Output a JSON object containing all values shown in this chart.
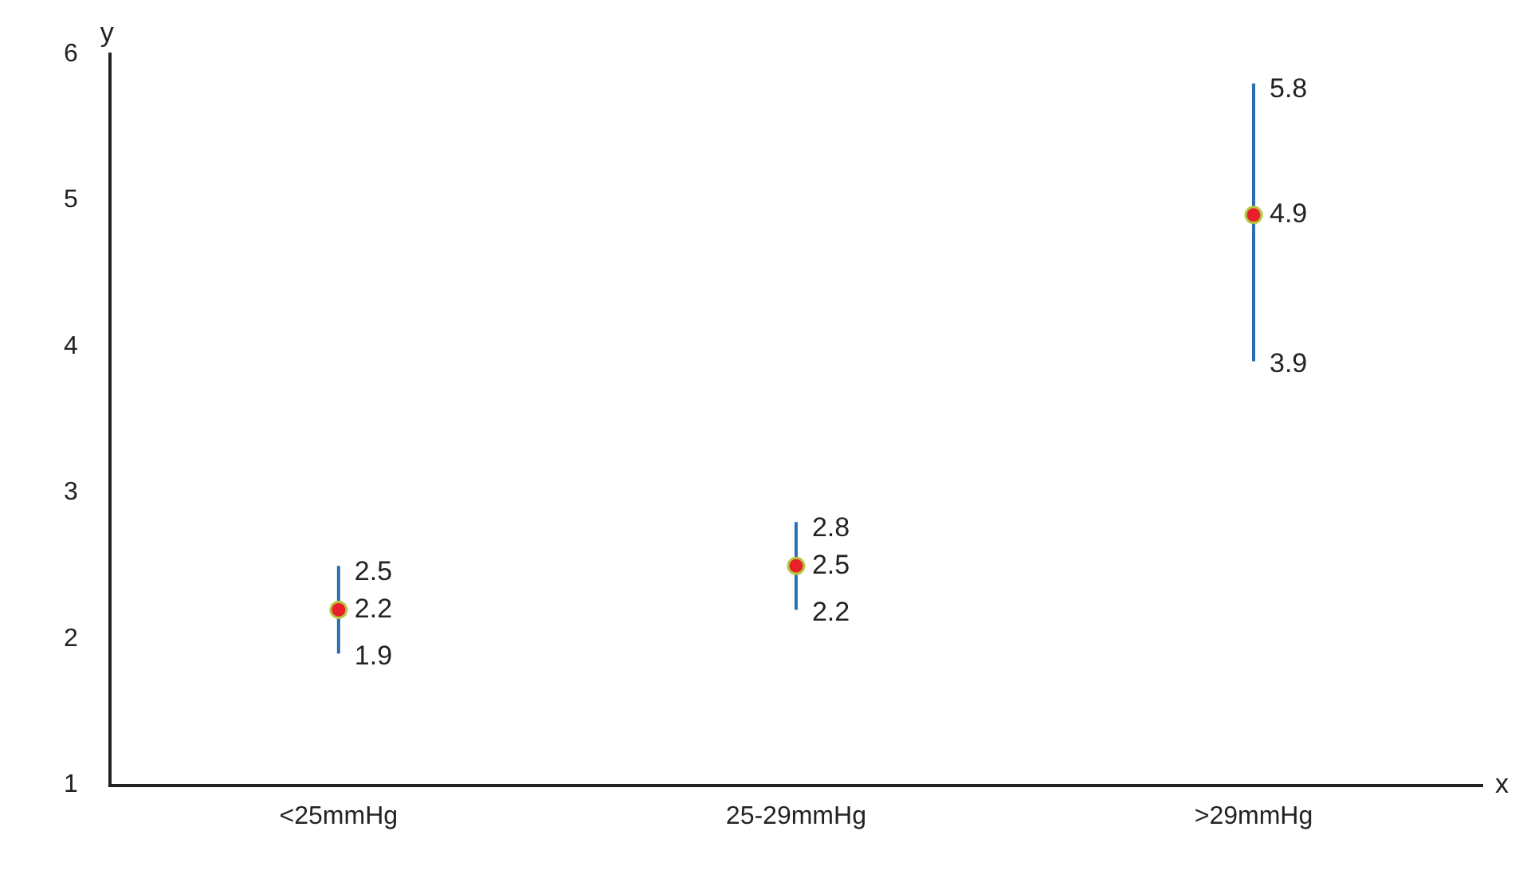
{
  "chart_data": {
    "type": "scatter",
    "xlabel": "x",
    "ylabel": "y",
    "categories": [
      "<25mmHg",
      "25-29mmHg",
      ">29mmHg"
    ],
    "series": [
      {
        "color": "#e8202a",
        "values": [
          2.2,
          2.5,
          4.9
        ],
        "errors": [
          [
            1.9,
            2.5
          ],
          [
            2.2,
            2.8
          ],
          [
            3.9,
            5.8
          ]
        ]
      }
    ],
    "annotations": [
      {
        "text": "2.5",
        "x": "<25mmHg",
        "y": 2.5
      },
      {
        "text": "1.9",
        "x": "<25mmHg",
        "y": 1.9
      },
      {
        "text": "2.8",
        "x": "25-29mmHg",
        "y": 2.8
      },
      {
        "text": "2.2",
        "x": "25-29mmHg",
        "y": 2.2
      },
      {
        "text": "5.8",
        "x": ">29mmHg",
        "y": 5.8
      },
      {
        "text": "3.9",
        "x": ">29mmHg",
        "y": 3.9
      }
    ],
    "ylim": [
      1,
      6
    ],
    "yticks": [
      1,
      2,
      3,
      4,
      5,
      6
    ],
    "grid": false,
    "legend": false,
    "marker": "circle",
    "data_labels": true
  }
}
